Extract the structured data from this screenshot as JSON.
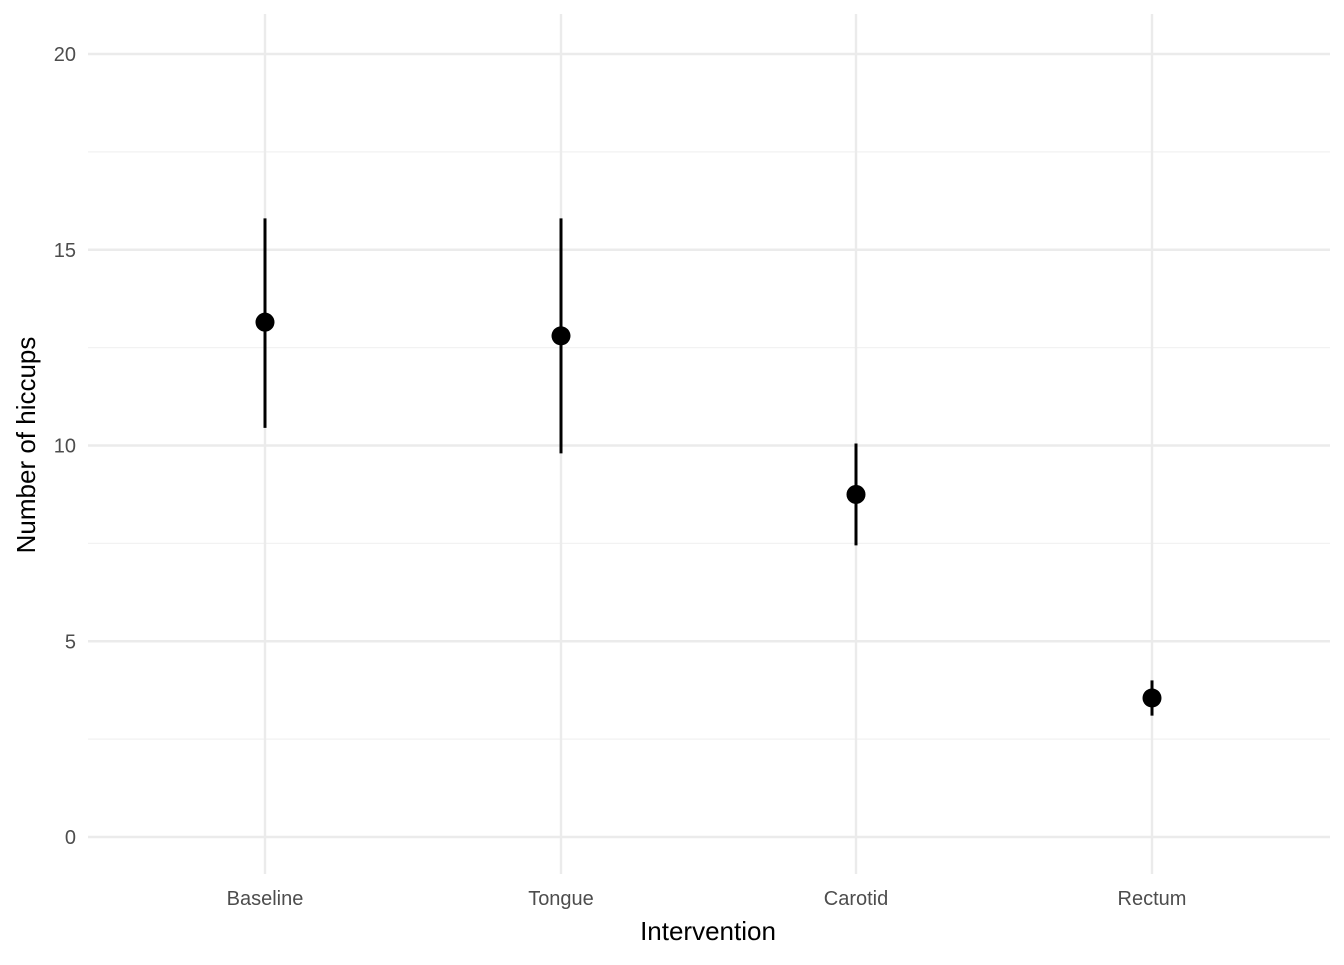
{
  "chart_data": {
    "type": "scatter",
    "subtype": "point-range",
    "xlabel": "Intervention",
    "ylabel": "Number of hiccups",
    "categories": [
      "Baseline",
      "Tongue",
      "Carotid",
      "Rectum"
    ],
    "series": [
      {
        "values": [
          13.15,
          12.8,
          8.75,
          3.55
        ],
        "lower": [
          10.45,
          9.8,
          7.45,
          3.1
        ],
        "upper": [
          15.8,
          15.8,
          10.05,
          4.0
        ]
      }
    ],
    "ylim": [
      -0.9,
      21.0
    ],
    "y_ticks": [
      0,
      5,
      10,
      15,
      20
    ],
    "y_tick_labels": [
      "0",
      "5",
      "10",
      "15",
      "20"
    ],
    "grid": true,
    "legend": "none",
    "colors": {
      "point": "#000000",
      "major_grid": "#ebebeb",
      "minor_grid": "#f2f2f2",
      "tick_text": "#4d4d4d",
      "background": "#ffffff"
    }
  }
}
